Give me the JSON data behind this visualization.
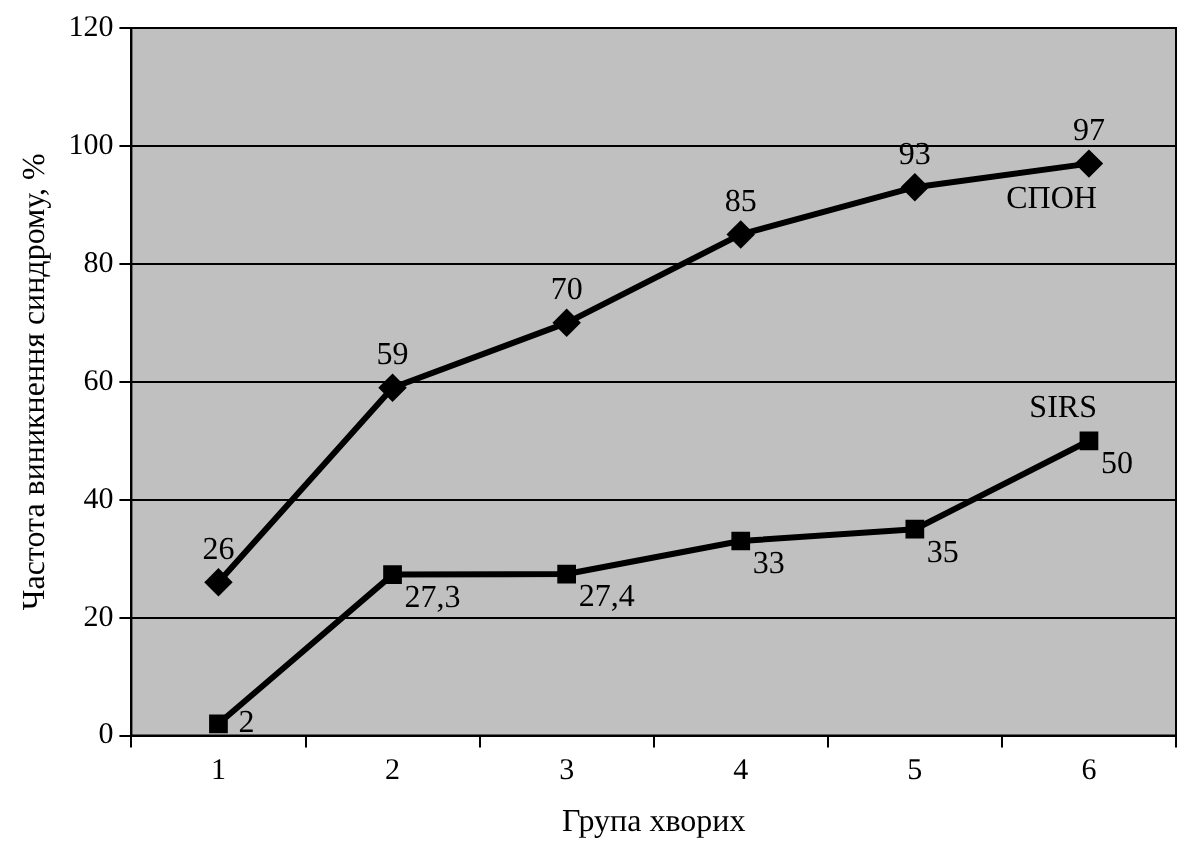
{
  "chart_data": {
    "type": "line",
    "xlabel": "Група хворих",
    "ylabel": "Частота виникнення синдрому, %",
    "categories": [
      "1",
      "2",
      "3",
      "4",
      "5",
      "6"
    ],
    "series": [
      {
        "name": "СПОН",
        "color": "#000000",
        "marker": "diamond",
        "values": [
          26,
          59,
          70,
          85,
          93,
          97
        ],
        "value_labels": [
          "26",
          "59",
          "70",
          "85",
          "93",
          "97"
        ]
      },
      {
        "name": "SIRS",
        "color": "#000000",
        "marker": "square",
        "values": [
          2,
          27.3,
          27.4,
          33,
          35,
          50
        ],
        "value_labels": [
          "2",
          "27,3",
          "27,4",
          "33",
          "35",
          "50"
        ]
      }
    ],
    "ylim": [
      0,
      120
    ],
    "yticks": [
      0,
      20,
      40,
      60,
      80,
      100,
      120
    ],
    "grid": "y",
    "legend": false,
    "line_style": "solid"
  }
}
